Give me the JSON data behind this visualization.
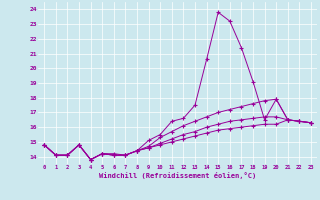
{
  "xlabel": "Windchill (Refroidissement éolien,°C)",
  "background_color": "#cce8ee",
  "line_color": "#990099",
  "xlim": [
    -0.5,
    23.5
  ],
  "ylim": [
    13.5,
    24.5
  ],
  "xticks": [
    0,
    1,
    2,
    3,
    4,
    5,
    6,
    7,
    8,
    9,
    10,
    11,
    12,
    13,
    14,
    15,
    16,
    17,
    18,
    19,
    20,
    21,
    22,
    23
  ],
  "yticks": [
    14,
    15,
    16,
    17,
    18,
    19,
    20,
    21,
    22,
    23,
    24
  ],
  "series": [
    [
      14.8,
      14.1,
      14.1,
      14.8,
      13.8,
      14.2,
      14.2,
      14.1,
      14.4,
      15.1,
      15.5,
      16.4,
      16.6,
      17.5,
      20.6,
      23.8,
      23.2,
      21.4,
      19.1,
      16.5,
      17.9,
      16.5,
      16.4,
      16.3
    ],
    [
      14.8,
      14.1,
      14.1,
      14.8,
      13.8,
      14.2,
      14.1,
      14.1,
      14.4,
      14.7,
      15.3,
      15.7,
      16.1,
      16.4,
      16.7,
      17.0,
      17.2,
      17.4,
      17.6,
      17.8,
      17.9,
      16.5,
      16.4,
      16.3
    ],
    [
      14.8,
      14.1,
      14.1,
      14.8,
      13.8,
      14.2,
      14.1,
      14.1,
      14.4,
      14.6,
      14.9,
      15.2,
      15.5,
      15.7,
      16.0,
      16.2,
      16.4,
      16.5,
      16.6,
      16.7,
      16.7,
      16.5,
      16.4,
      16.3
    ],
    [
      14.8,
      14.1,
      14.1,
      14.8,
      13.8,
      14.2,
      14.1,
      14.1,
      14.4,
      14.6,
      14.8,
      15.0,
      15.2,
      15.4,
      15.6,
      15.8,
      15.9,
      16.0,
      16.1,
      16.2,
      16.2,
      16.5,
      16.4,
      16.3
    ]
  ],
  "figsize": [
    3.2,
    2.0
  ],
  "dpi": 100
}
